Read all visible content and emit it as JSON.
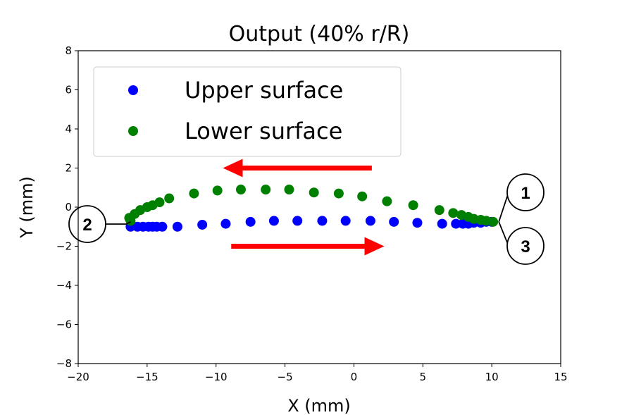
{
  "chart_data": {
    "type": "scatter",
    "title": "Output (40% r/R)",
    "xlabel": "X (mm)",
    "ylabel": "Y (mm)",
    "xlim": [
      -20,
      15
    ],
    "ylim": [
      -8,
      8
    ],
    "xticks": [
      -20,
      -15,
      -10,
      -5,
      0,
      5,
      10,
      15
    ],
    "yticks": [
      -8,
      -6,
      -4,
      -2,
      0,
      2,
      4,
      6,
      8
    ],
    "xtick_labels": [
      "−20",
      "−15",
      "−10",
      "−5",
      "0",
      "5",
      "10",
      "15"
    ],
    "ytick_labels": [
      "−8",
      "−6",
      "−4",
      "−2",
      "0",
      "2",
      "4",
      "6",
      "8"
    ],
    "grid": false,
    "legend_position": "top-left",
    "series": [
      {
        "name": "Upper surface",
        "color": "#0000ff",
        "x": [
          -16.2,
          -15.7,
          -15.3,
          -14.9,
          -14.6,
          -14.3,
          -13.9,
          -12.8,
          -11.0,
          -9.3,
          -7.5,
          -5.8,
          -4.1,
          -2.3,
          -0.6,
          1.2,
          2.9,
          4.6,
          6.4,
          7.4,
          7.9,
          8.3,
          8.7,
          9.2,
          9.6,
          10.0
        ],
        "y": [
          -1.0,
          -1.0,
          -1.0,
          -1.0,
          -1.0,
          -1.0,
          -1.0,
          -1.0,
          -0.9,
          -0.85,
          -0.75,
          -0.7,
          -0.7,
          -0.7,
          -0.7,
          -0.7,
          -0.75,
          -0.8,
          -0.85,
          -0.85,
          -0.85,
          -0.85,
          -0.8,
          -0.8,
          -0.75,
          -0.75
        ]
      },
      {
        "name": "Lower surface",
        "color": "#008000",
        "x": [
          -16.3,
          -16.2,
          -15.9,
          -15.5,
          -15.0,
          -14.6,
          -14.1,
          -13.4,
          -11.6,
          -9.9,
          -8.2,
          -6.4,
          -4.7,
          -2.9,
          -1.1,
          0.6,
          2.4,
          4.3,
          6.2,
          7.2,
          7.8,
          8.3,
          8.7,
          9.2,
          9.6,
          10.1
        ],
        "y": [
          -0.55,
          -0.7,
          -0.35,
          -0.15,
          0.0,
          0.1,
          0.25,
          0.45,
          0.7,
          0.85,
          0.9,
          0.9,
          0.9,
          0.75,
          0.7,
          0.55,
          0.3,
          0.1,
          -0.15,
          -0.3,
          -0.4,
          -0.5,
          -0.6,
          -0.65,
          -0.7,
          -0.75
        ]
      }
    ],
    "annotations": {
      "callouts": [
        {
          "label": "1",
          "x": 10.0,
          "y": -0.75
        },
        {
          "label": "2",
          "x": -16.3,
          "y": -0.9
        },
        {
          "label": "3",
          "x": 10.0,
          "y": -0.75
        }
      ],
      "arrows": [
        {
          "color": "#ff0000",
          "direction": "left",
          "x_from": 1.3,
          "x_to": -9.5,
          "y": 2.0
        },
        {
          "color": "#ff0000",
          "direction": "right",
          "x_from": -8.9,
          "x_to": 2.2,
          "y": -2.0
        }
      ]
    }
  }
}
